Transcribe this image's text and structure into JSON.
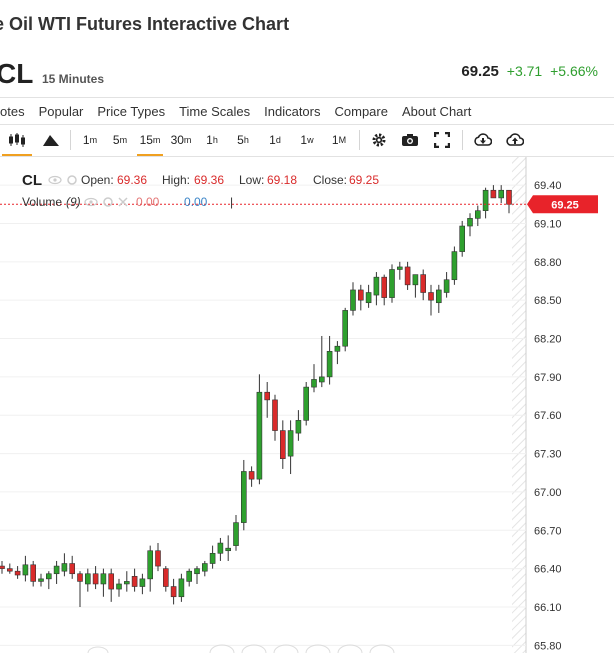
{
  "header": {
    "title": "e Oil WTI Futures Interactive Chart",
    "symbol": "CL",
    "interval": "15 Minutes",
    "last": "69.25",
    "change": "+3.71",
    "change_pct": "+5.66%"
  },
  "menu": [
    "otes",
    "Popular",
    "Price Types",
    "Time Scales",
    "Indicators",
    "Compare",
    "About Chart"
  ],
  "toolbar": {
    "timeframes": [
      {
        "main": "1",
        "sup": "m"
      },
      {
        "main": "5",
        "sup": "m"
      },
      {
        "main": "15",
        "sup": "m"
      },
      {
        "main": "30",
        "sup": "m"
      },
      {
        "main": "1",
        "sup": "h"
      },
      {
        "main": "5",
        "sup": "h"
      },
      {
        "main": "1",
        "sup": "d"
      },
      {
        "main": "1",
        "sup": "w"
      },
      {
        "main": "1",
        "sup": "M"
      }
    ],
    "selected_timeframe": "15m",
    "icons": [
      "candlestick-icon",
      "mountain-icon",
      "gear-icon",
      "camera-icon",
      "fullscreen-icon",
      "download-icon",
      "upload-icon"
    ]
  },
  "legend": {
    "symbol": "CL",
    "open_label": "Open:",
    "open": "69.36",
    "high_label": "High:",
    "high": "69.36",
    "low_label": "Low:",
    "low": "69.18",
    "close_label": "Close:",
    "close": "69.25",
    "volume_label": "Volume",
    "volume_param": "(9)",
    "volume_val1": "0.00",
    "volume_val2": "0.00",
    "cursor": "|"
  },
  "colors": {
    "up": "#2ea02e",
    "down": "#d92b2b",
    "price_badge": "#e8232a",
    "accent": "#f0a020"
  },
  "chart_data": {
    "type": "candlestick",
    "yticks": [
      "69.40",
      "69.10",
      "68.80",
      "68.50",
      "68.20",
      "67.90",
      "67.60",
      "67.30",
      "67.00",
      "66.70",
      "66.40",
      "66.10",
      "65.80"
    ],
    "ylim": [
      65.74,
      69.62
    ],
    "current_price": "69.25",
    "candles": [
      {
        "o": 66.42,
        "h": 66.46,
        "l": 66.36,
        "c": 66.4
      },
      {
        "o": 66.4,
        "h": 66.44,
        "l": 66.36,
        "c": 66.38
      },
      {
        "o": 66.38,
        "h": 66.42,
        "l": 66.32,
        "c": 66.35
      },
      {
        "o": 66.35,
        "h": 66.5,
        "l": 66.3,
        "c": 66.43
      },
      {
        "o": 66.43,
        "h": 66.46,
        "l": 66.26,
        "c": 66.3
      },
      {
        "o": 66.3,
        "h": 66.36,
        "l": 66.26,
        "c": 66.32
      },
      {
        "o": 66.32,
        "h": 66.38,
        "l": 66.24,
        "c": 66.36
      },
      {
        "o": 66.36,
        "h": 66.46,
        "l": 66.28,
        "c": 66.42
      },
      {
        "o": 66.38,
        "h": 66.52,
        "l": 66.34,
        "c": 66.44
      },
      {
        "o": 66.44,
        "h": 66.5,
        "l": 66.32,
        "c": 66.36
      },
      {
        "o": 66.36,
        "h": 66.38,
        "l": 66.1,
        "c": 66.3
      },
      {
        "o": 66.28,
        "h": 66.4,
        "l": 66.22,
        "c": 66.36
      },
      {
        "o": 66.36,
        "h": 66.42,
        "l": 66.24,
        "c": 66.28
      },
      {
        "o": 66.28,
        "h": 66.4,
        "l": 66.18,
        "c": 66.36
      },
      {
        "o": 66.36,
        "h": 66.4,
        "l": 66.14,
        "c": 66.24
      },
      {
        "o": 66.24,
        "h": 66.32,
        "l": 66.18,
        "c": 66.28
      },
      {
        "o": 66.28,
        "h": 66.38,
        "l": 66.22,
        "c": 66.3
      },
      {
        "o": 66.34,
        "h": 66.4,
        "l": 66.22,
        "c": 66.26
      },
      {
        "o": 66.26,
        "h": 66.36,
        "l": 66.2,
        "c": 66.32
      },
      {
        "o": 66.32,
        "h": 66.58,
        "l": 66.22,
        "c": 66.54
      },
      {
        "o": 66.54,
        "h": 66.6,
        "l": 66.38,
        "c": 66.42
      },
      {
        "o": 66.4,
        "h": 66.42,
        "l": 66.22,
        "c": 66.26
      },
      {
        "o": 66.26,
        "h": 66.32,
        "l": 66.12,
        "c": 66.18
      },
      {
        "o": 66.18,
        "h": 66.36,
        "l": 66.14,
        "c": 66.32
      },
      {
        "o": 66.3,
        "h": 66.4,
        "l": 66.26,
        "c": 66.38
      },
      {
        "o": 66.36,
        "h": 66.42,
        "l": 66.28,
        "c": 66.4
      },
      {
        "o": 66.38,
        "h": 66.46,
        "l": 66.34,
        "c": 66.44
      },
      {
        "o": 66.44,
        "h": 66.58,
        "l": 66.4,
        "c": 66.52
      },
      {
        "o": 66.52,
        "h": 66.64,
        "l": 66.46,
        "c": 66.6
      },
      {
        "o": 66.54,
        "h": 66.66,
        "l": 66.46,
        "c": 66.56
      },
      {
        "o": 66.58,
        "h": 66.82,
        "l": 66.54,
        "c": 66.76
      },
      {
        "o": 66.76,
        "h": 67.25,
        "l": 66.7,
        "c": 67.16
      },
      {
        "o": 67.16,
        "h": 67.2,
        "l": 67.04,
        "c": 67.1
      },
      {
        "o": 67.1,
        "h": 67.92,
        "l": 67.06,
        "c": 67.78
      },
      {
        "o": 67.78,
        "h": 67.86,
        "l": 67.58,
        "c": 67.72
      },
      {
        "o": 67.72,
        "h": 67.76,
        "l": 67.4,
        "c": 67.48
      },
      {
        "o": 67.48,
        "h": 67.56,
        "l": 67.18,
        "c": 67.26
      },
      {
        "o": 67.28,
        "h": 67.56,
        "l": 67.14,
        "c": 67.48
      },
      {
        "o": 67.46,
        "h": 67.64,
        "l": 67.4,
        "c": 67.56
      },
      {
        "o": 67.56,
        "h": 67.86,
        "l": 67.52,
        "c": 67.82
      },
      {
        "o": 67.82,
        "h": 68.0,
        "l": 67.78,
        "c": 67.88
      },
      {
        "o": 67.86,
        "h": 68.22,
        "l": 67.82,
        "c": 67.9
      },
      {
        "o": 67.9,
        "h": 68.22,
        "l": 67.84,
        "c": 68.1
      },
      {
        "o": 68.1,
        "h": 68.18,
        "l": 68.0,
        "c": 68.14
      },
      {
        "o": 68.14,
        "h": 68.44,
        "l": 68.1,
        "c": 68.42
      },
      {
        "o": 68.42,
        "h": 68.64,
        "l": 68.38,
        "c": 68.58
      },
      {
        "o": 68.58,
        "h": 68.62,
        "l": 68.42,
        "c": 68.5
      },
      {
        "o": 68.48,
        "h": 68.62,
        "l": 68.44,
        "c": 68.56
      },
      {
        "o": 68.54,
        "h": 68.72,
        "l": 68.46,
        "c": 68.68
      },
      {
        "o": 68.68,
        "h": 68.7,
        "l": 68.46,
        "c": 68.52
      },
      {
        "o": 68.52,
        "h": 68.78,
        "l": 68.48,
        "c": 68.74
      },
      {
        "o": 68.74,
        "h": 68.8,
        "l": 68.66,
        "c": 68.76
      },
      {
        "o": 68.76,
        "h": 68.8,
        "l": 68.58,
        "c": 68.62
      },
      {
        "o": 68.62,
        "h": 68.7,
        "l": 68.52,
        "c": 68.7
      },
      {
        "o": 68.7,
        "h": 68.74,
        "l": 68.5,
        "c": 68.56
      },
      {
        "o": 68.56,
        "h": 68.62,
        "l": 68.38,
        "c": 68.5
      },
      {
        "o": 68.48,
        "h": 68.62,
        "l": 68.4,
        "c": 68.58
      },
      {
        "o": 68.56,
        "h": 68.72,
        "l": 68.52,
        "c": 68.66
      },
      {
        "o": 68.66,
        "h": 68.92,
        "l": 68.62,
        "c": 68.88
      },
      {
        "o": 68.88,
        "h": 69.12,
        "l": 68.84,
        "c": 69.08
      },
      {
        "o": 69.08,
        "h": 69.18,
        "l": 69.0,
        "c": 69.14
      },
      {
        "o": 69.14,
        "h": 69.24,
        "l": 69.08,
        "c": 69.2
      },
      {
        "o": 69.2,
        "h": 69.38,
        "l": 69.14,
        "c": 69.36
      },
      {
        "o": 69.36,
        "h": 69.4,
        "l": 69.3,
        "c": 69.3
      },
      {
        "o": 69.3,
        "h": 69.4,
        "l": 69.26,
        "c": 69.36
      },
      {
        "o": 69.36,
        "h": 69.36,
        "l": 69.18,
        "c": 69.25
      }
    ]
  }
}
